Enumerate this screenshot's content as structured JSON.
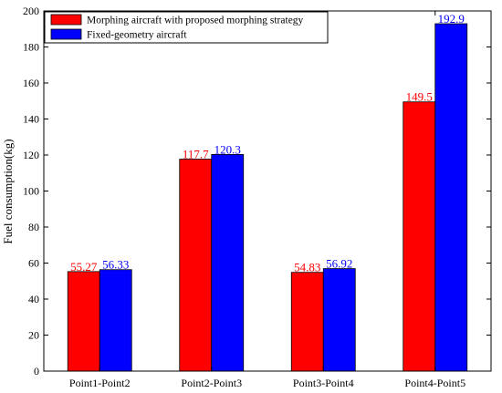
{
  "colors": {
    "series1": "#ff0000",
    "series2": "#0000ff",
    "axis": "#000000"
  },
  "chart_data": {
    "type": "bar",
    "title": "",
    "xlabel": "",
    "ylabel": "Fuel consumption(kg)",
    "ylim": [
      0,
      200
    ],
    "yticks": [
      0,
      20,
      40,
      60,
      80,
      100,
      120,
      140,
      160,
      180,
      200
    ],
    "categories": [
      "Point1-Point2",
      "Point2-Point3",
      "Point3-Point4",
      "Point4-Point5"
    ],
    "series": [
      {
        "name": "Morphing aircraft with proposed morphing strategy",
        "values": [
          55.27,
          117.7,
          54.83,
          149.5
        ],
        "labels": [
          "55.27",
          "117.7",
          "54.83",
          "149.5"
        ],
        "color": "#ff0000"
      },
      {
        "name": "Fixed-geometry aircraft",
        "values": [
          56.33,
          120.3,
          56.92,
          192.9
        ],
        "labels": [
          "56.33",
          "120.3",
          "56.92",
          "192.9"
        ],
        "color": "#0000ff"
      }
    ],
    "legend": "top-left",
    "grid": false
  }
}
